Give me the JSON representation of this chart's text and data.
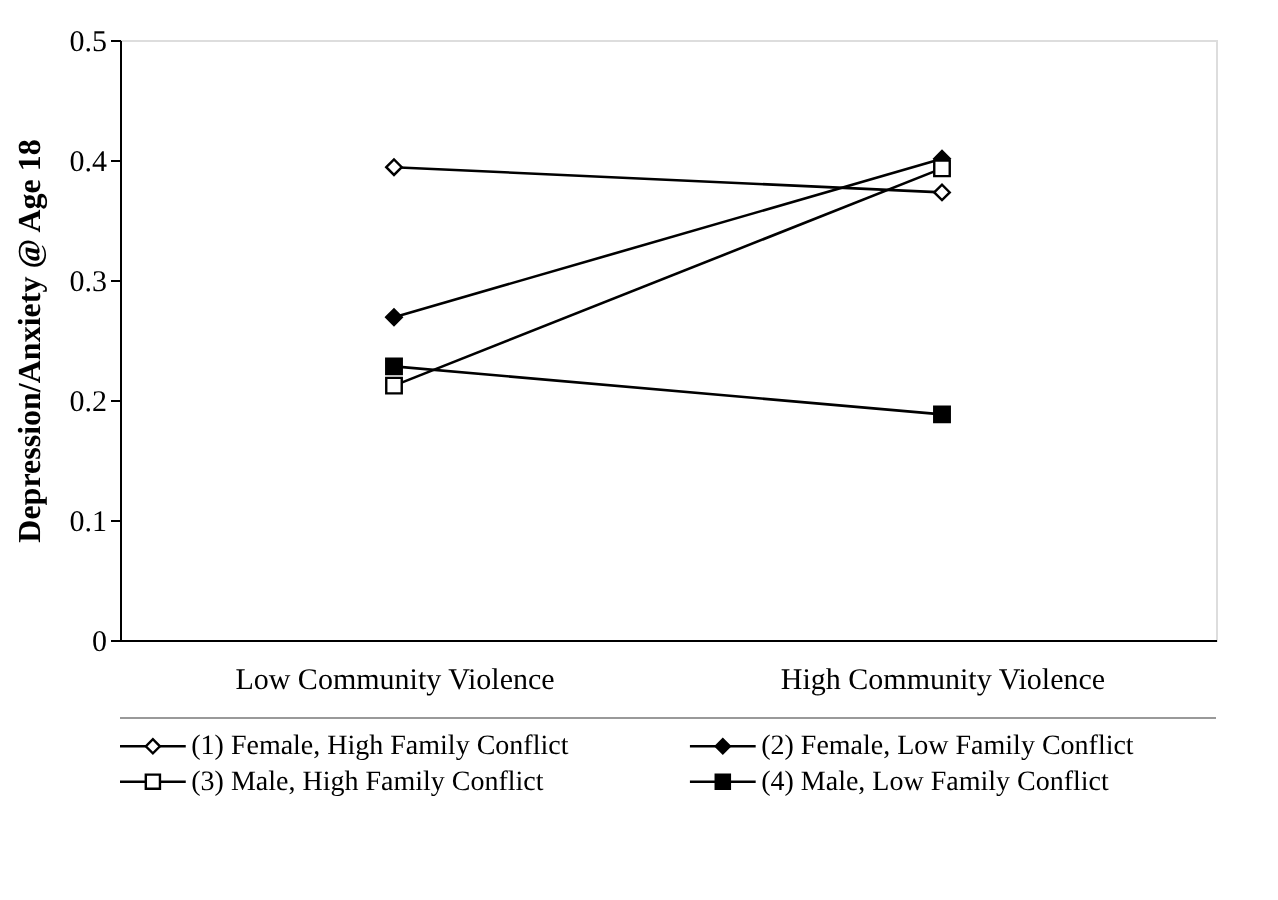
{
  "chart_data": {
    "type": "line",
    "ylabel": "Depression/Anxiety @ Age 18",
    "categories": [
      "Low Community Violence",
      "High Community Violence"
    ],
    "series": [
      {
        "name": "(1) Female, High Family Conflict",
        "color": "#000000",
        "marker": "diamond",
        "values": [
          0.394,
          0.373
        ]
      },
      {
        "name": "(2) Female, Low Family Conflict",
        "color": "#000000",
        "marker": "diamond",
        "values": [
          0.269,
          0.401
        ]
      },
      {
        "name": "(3) Male, High Family Conflict",
        "color": "#000000",
        "marker": "square",
        "values": [
          0.212,
          0.393
        ]
      },
      {
        "name": "(4) Male, Low Family Conflict",
        "color": "#000000",
        "marker": "square",
        "values": [
          0.228,
          0.188
        ]
      }
    ],
    "ylim": [
      0,
      0.5
    ],
    "yticks": [
      0,
      0.1,
      0.2,
      0.3,
      0.4,
      0.5
    ],
    "grid": false,
    "legend": "bottom",
    "line_style": "solid"
  }
}
